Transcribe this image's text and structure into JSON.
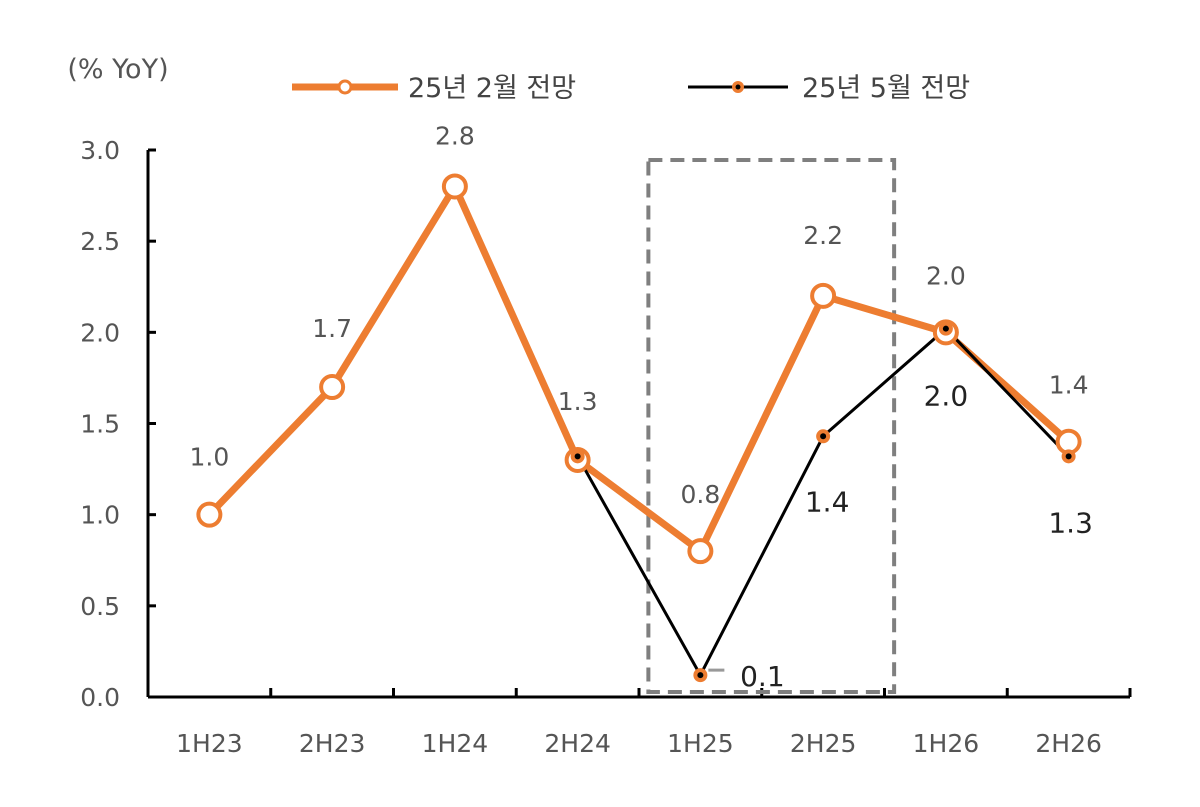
{
  "chart_data": {
    "type": "line",
    "ylabel": "(% YoY)",
    "categories": [
      "1H23",
      "2H23",
      "1H24",
      "2H24",
      "1H25",
      "2H25",
      "1H26",
      "2H26"
    ],
    "ylim": [
      0.0,
      3.0
    ],
    "yticks": [
      "0.0",
      "0.5",
      "1.0",
      "1.5",
      "2.0",
      "2.5",
      "3.0"
    ],
    "series": [
      {
        "name": "25년 2월 전망",
        "color": "#ED7D31",
        "marker": "hollow-circle",
        "values": [
          1.0,
          1.7,
          2.8,
          1.3,
          0.8,
          2.2,
          2.0,
          1.4
        ],
        "labels": [
          "1.0",
          "1.7",
          "2.8",
          "1.3",
          "0.8",
          "2.2",
          "2.0",
          "1.4"
        ]
      },
      {
        "name": "25년 5월 전망",
        "color": "#000000",
        "marker": "orange-dot",
        "marker_color": "#ED7D31",
        "start_index": 3,
        "values": [
          null,
          null,
          null,
          1.32,
          0.12,
          1.43,
          2.02,
          1.32
        ],
        "labels": [
          "",
          "",
          "",
          "",
          "0.1",
          "1.4",
          "2.0",
          "1.3"
        ]
      }
    ],
    "annotations": [
      {
        "type": "dashed-box",
        "from_category": "1H25",
        "to_category": "2H25",
        "color": "#7F7F7F"
      }
    ],
    "legend_position": "top"
  }
}
